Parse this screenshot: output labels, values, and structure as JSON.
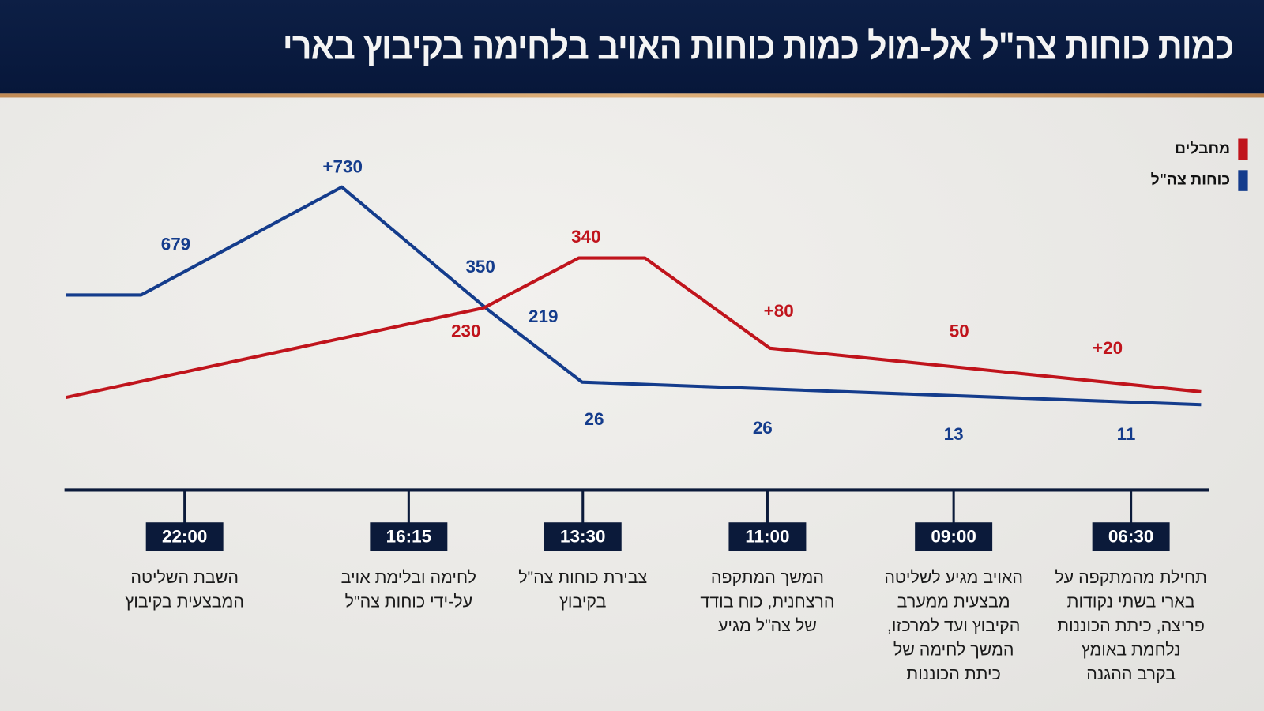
{
  "chart_data": {
    "type": "line",
    "title": "כמות כוחות צה\"ל אל-מול כמות כוחות האויב בלחימה בקיבוץ בארי",
    "x_direction": "right-to-left",
    "categories": [
      "06:30",
      "09:00",
      "11:00",
      "13:30",
      "16:15",
      "22:00"
    ],
    "descriptions": [
      "תחילת מהמתקפה על\nבארי בשתי נקודות\nפריצה, כיתת הכוננות\nנלחמת באומץ\nבקרב ההגנה",
      "האויב מגיע לשליטה\nמבצעית ממערב\nהקיבוץ ועד למרכזו,\nהמשך לחימה של\nכיתת הכוננות",
      "המשך המתקפה\nהרצחנית, כוח בודד\nשל צה\"ל מגיע",
      "צבירת כוחות צה\"ל\nבקיבוץ",
      "לחימה ובלימת אויב\nעל-ידי כוחות צה\"ל",
      "השבת השליטה\nהמבצעית בקיבוץ"
    ],
    "series": [
      {
        "name": "מחבלים",
        "color": "#c0141c",
        "labels": [
          "+20",
          "50",
          "+80",
          "340",
          "230"
        ]
      },
      {
        "name": "כוחות צה\"ל",
        "color": "#143c8c",
        "labels": [
          "11",
          "13",
          "26",
          "26",
          "219",
          "350",
          "+730",
          "679"
        ]
      }
    ],
    "legend": "top-right",
    "grid": false
  }
}
